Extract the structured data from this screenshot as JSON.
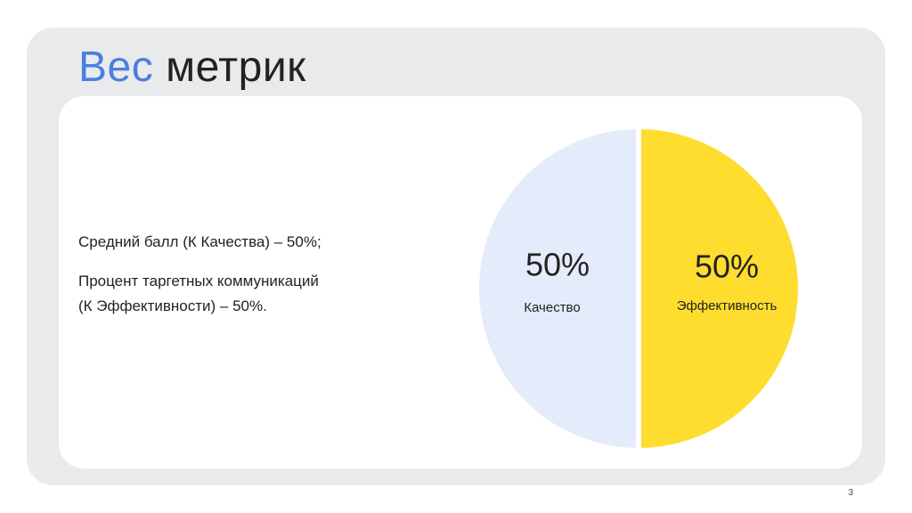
{
  "slide": {
    "title_accent": "Вес",
    "title_rest": "метрик",
    "text_lines": [
      "Средний балл (К Качества) – 50%;",
      "Процент таргетных коммуникаций",
      "(К Эффективности) – 50%."
    ],
    "page_number": "3",
    "accent_color": "#4a7fe0"
  },
  "chart_data": {
    "type": "pie",
    "categories": [
      "Качество",
      "Эффективность"
    ],
    "values": [
      50,
      50
    ],
    "labels": [
      "50%",
      "50%"
    ],
    "colors": [
      "#e4ebfb",
      "#fedd2f"
    ],
    "title": "",
    "legend": "none"
  }
}
